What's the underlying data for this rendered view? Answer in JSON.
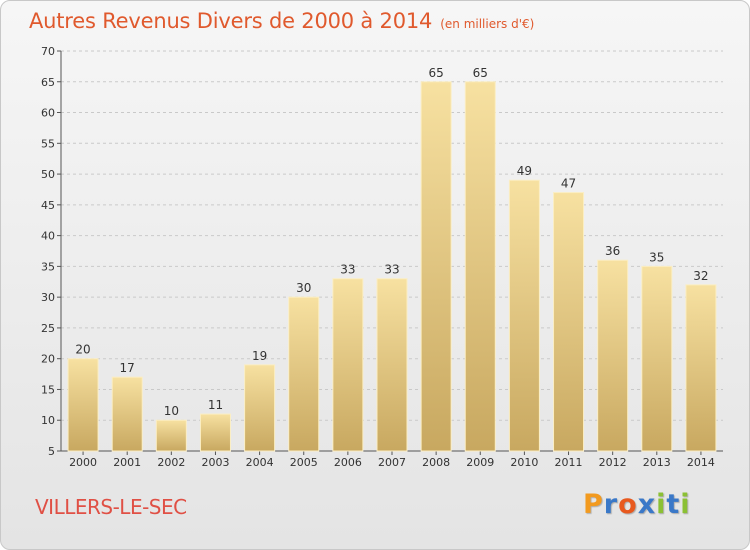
{
  "header": {
    "title": "Autres Revenus Divers de 2000 à 2014",
    "unit": "(en milliers d'€)"
  },
  "footer": {
    "commune": "VILLERS-LE-SEC"
  },
  "brand": {
    "letters": [
      "P",
      "r",
      "o",
      "x",
      "i",
      "t",
      "i"
    ],
    "colors": [
      "#f29a1f",
      "#3a78c8",
      "#e8591e",
      "#3a78c8",
      "#8bc034",
      "#3a78c8",
      "#8bc034"
    ]
  },
  "colors": {
    "bar_top": "#f7e1a1",
    "bar_bottom": "#c8a860",
    "title": "#e0592d"
  },
  "chart_data": {
    "type": "bar",
    "categories": [
      "2000",
      "2001",
      "2002",
      "2003",
      "2004",
      "2005",
      "2006",
      "2007",
      "2008",
      "2009",
      "2010",
      "2011",
      "2012",
      "2013",
      "2014"
    ],
    "values": [
      20,
      17,
      10,
      11,
      19,
      30,
      33,
      33,
      65,
      65,
      49,
      47,
      36,
      35,
      32
    ],
    "title": "Autres Revenus Divers de 2000 à 2014",
    "ylim": [
      5,
      70
    ],
    "yticks": [
      5,
      10,
      15,
      20,
      25,
      30,
      35,
      40,
      45,
      50,
      55,
      60,
      65,
      70
    ],
    "grid": true
  }
}
